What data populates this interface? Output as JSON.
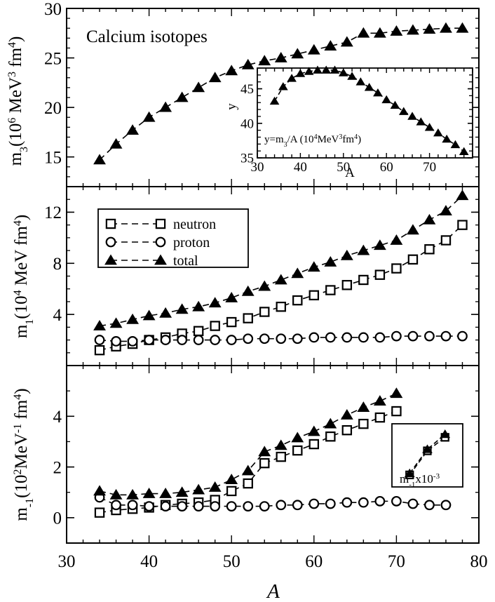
{
  "figure": {
    "xlabel": "A",
    "shared_xticks": [
      "30",
      "40",
      "50",
      "60",
      "70",
      "80"
    ]
  },
  "chart_data": [
    {
      "type": "line",
      "panel": "top",
      "title": "Calcium isotopes",
      "ylabel": {
        "base": "m",
        "sub": "3",
        "open": "(10",
        "sup1": "6",
        "mid": " MeV",
        "sup2": "3",
        "tail": " fm",
        "sup3": "4",
        "close": ")"
      },
      "xlim": [
        30,
        80
      ],
      "ylim": [
        12,
        30
      ],
      "yticks": [
        "15",
        "20",
        "25",
        "30"
      ],
      "series": [
        {
          "name": "total",
          "marker": "triangle",
          "x": [
            34,
            36,
            38,
            40,
            42,
            44,
            46,
            48,
            50,
            52,
            54,
            56,
            58,
            60,
            62,
            64,
            66,
            68,
            70,
            72,
            74,
            76,
            78
          ],
          "y": [
            14.7,
            16.3,
            17.7,
            19.0,
            20.0,
            21.0,
            22.0,
            23.0,
            23.7,
            24.3,
            24.7,
            25.0,
            25.4,
            25.8,
            26.2,
            26.6,
            27.5,
            27.5,
            27.7,
            27.8,
            27.9,
            28.0,
            28.0
          ]
        }
      ]
    },
    {
      "type": "line",
      "panel": "top-inset",
      "xlabel": "A",
      "ylabel": "y",
      "annotation": {
        "a": "y=m",
        "sub": "3",
        "b": "/A (10",
        "sup1": "4",
        "c": "MeV",
        "sup2": "3",
        "d": "fm",
        "sup3": "4",
        "e": ")"
      },
      "xlim": [
        30,
        80
      ],
      "ylim": [
        35,
        48
      ],
      "xticks": [
        "30",
        "40",
        "50",
        "60",
        "70"
      ],
      "yticks": [
        "35",
        "40",
        "45"
      ],
      "series": [
        {
          "name": "y",
          "marker": "triangle",
          "x": [
            34,
            36,
            38,
            40,
            42,
            44,
            46,
            48,
            50,
            52,
            54,
            56,
            58,
            60,
            62,
            64,
            66,
            68,
            70,
            72,
            74,
            76,
            78
          ],
          "y": [
            43.2,
            45.3,
            46.5,
            47.2,
            47.5,
            47.7,
            47.7,
            47.7,
            47.3,
            46.8,
            46.0,
            45.2,
            44.4,
            43.4,
            42.6,
            41.7,
            41.0,
            40.2,
            39.4,
            38.6,
            37.7,
            36.9,
            35.9
          ]
        }
      ]
    },
    {
      "type": "line",
      "panel": "middle",
      "ylabel": {
        "base": "m",
        "sub": "1",
        "open": "(10",
        "sup1": "4",
        "mid": " MeV fm",
        "sup2": "4",
        "close": ")"
      },
      "xlim": [
        30,
        80
      ],
      "ylim": [
        0,
        14
      ],
      "yticks": [
        "4",
        "8",
        "12"
      ],
      "legend": {
        "position": "upper-left",
        "entries": [
          "neutron",
          "proton",
          "total"
        ]
      },
      "series": [
        {
          "name": "neutron",
          "marker": "square",
          "x": [
            34,
            36,
            38,
            40,
            42,
            44,
            46,
            48,
            50,
            52,
            54,
            56,
            58,
            60,
            62,
            64,
            66,
            68,
            70,
            72,
            74,
            76,
            78
          ],
          "y": [
            1.2,
            1.5,
            1.7,
            2.0,
            2.2,
            2.5,
            2.7,
            3.1,
            3.4,
            3.7,
            4.2,
            4.6,
            5.1,
            5.5,
            5.9,
            6.3,
            6.7,
            7.1,
            7.6,
            8.3,
            9.1,
            9.8,
            11.0
          ]
        },
        {
          "name": "proton",
          "marker": "circle",
          "x": [
            34,
            36,
            38,
            40,
            42,
            44,
            46,
            48,
            50,
            52,
            54,
            56,
            58,
            60,
            62,
            64,
            66,
            68,
            70,
            72,
            74,
            76,
            78
          ],
          "y": [
            2.0,
            1.9,
            1.9,
            2.0,
            2.0,
            2.0,
            2.0,
            2.0,
            2.0,
            2.1,
            2.1,
            2.1,
            2.1,
            2.2,
            2.2,
            2.2,
            2.2,
            2.2,
            2.3,
            2.3,
            2.3,
            2.3,
            2.3
          ]
        },
        {
          "name": "total",
          "marker": "triangle",
          "x": [
            34,
            36,
            38,
            40,
            42,
            44,
            46,
            48,
            50,
            52,
            54,
            56,
            58,
            60,
            62,
            64,
            66,
            68,
            70,
            72,
            74,
            76,
            78
          ],
          "y": [
            3.1,
            3.3,
            3.6,
            3.9,
            4.1,
            4.4,
            4.6,
            4.9,
            5.3,
            5.8,
            6.2,
            6.7,
            7.2,
            7.7,
            8.1,
            8.6,
            9.0,
            9.4,
            9.8,
            10.6,
            11.4,
            12.1,
            13.3
          ]
        }
      ]
    },
    {
      "type": "line",
      "panel": "bottom",
      "ylabel": {
        "base": "m",
        "sub": "-1",
        "open": "(10",
        "sup1": "2",
        "mid": "MeV",
        "sup2": "-1",
        "tail": " fm",
        "sup3": "4",
        "close": ")"
      },
      "xlim": [
        30,
        80
      ],
      "ylim": [
        -1,
        6
      ],
      "yticks": [
        "0",
        "2",
        "4"
      ],
      "series": [
        {
          "name": "neutron",
          "marker": "square",
          "x": [
            34,
            36,
            38,
            40,
            42,
            44,
            46,
            48,
            50,
            52,
            54,
            56,
            58,
            60,
            62,
            64,
            66,
            68,
            70
          ],
          "y": [
            0.2,
            0.3,
            0.35,
            0.4,
            0.5,
            0.55,
            0.6,
            0.7,
            1.05,
            1.35,
            2.15,
            2.4,
            2.65,
            2.9,
            3.2,
            3.45,
            3.7,
            3.95,
            4.2
          ]
        },
        {
          "name": "proton",
          "marker": "circle",
          "x": [
            34,
            36,
            38,
            40,
            42,
            44,
            46,
            48,
            50,
            52,
            54,
            56,
            58,
            60,
            62,
            64,
            66,
            68,
            70,
            72,
            74,
            76
          ],
          "y": [
            0.8,
            0.5,
            0.5,
            0.45,
            0.45,
            0.45,
            0.45,
            0.45,
            0.45,
            0.45,
            0.45,
            0.5,
            0.5,
            0.55,
            0.55,
            0.6,
            0.6,
            0.65,
            0.65,
            0.55,
            0.5,
            0.5
          ]
        },
        {
          "name": "total",
          "marker": "triangle",
          "x": [
            34,
            36,
            38,
            40,
            42,
            44,
            46,
            48,
            50,
            52,
            54,
            56,
            58,
            60,
            62,
            64,
            66,
            68,
            70
          ],
          "y": [
            1.05,
            0.9,
            0.9,
            0.95,
            0.95,
            1.0,
            1.1,
            1.2,
            1.5,
            1.85,
            2.6,
            2.85,
            3.15,
            3.4,
            3.7,
            4.05,
            4.35,
            4.6,
            4.9
          ]
        }
      ]
    },
    {
      "type": "line",
      "panel": "bottom-inset",
      "label": {
        "base": "m",
        "sub": "-1",
        "tail": "x10",
        "sup": "-3"
      },
      "xlim": [
        70,
        78
      ],
      "ylim": [
        1.7,
        3.8
      ],
      "series": [
        {
          "name": "neutron",
          "marker": "square",
          "x": [
            72,
            74,
            76
          ],
          "y": [
            2.1,
            2.9,
            3.35
          ]
        },
        {
          "name": "total",
          "marker": "triangle",
          "x": [
            72,
            74,
            76
          ],
          "y": [
            2.15,
            2.95,
            3.45
          ]
        }
      ]
    }
  ]
}
